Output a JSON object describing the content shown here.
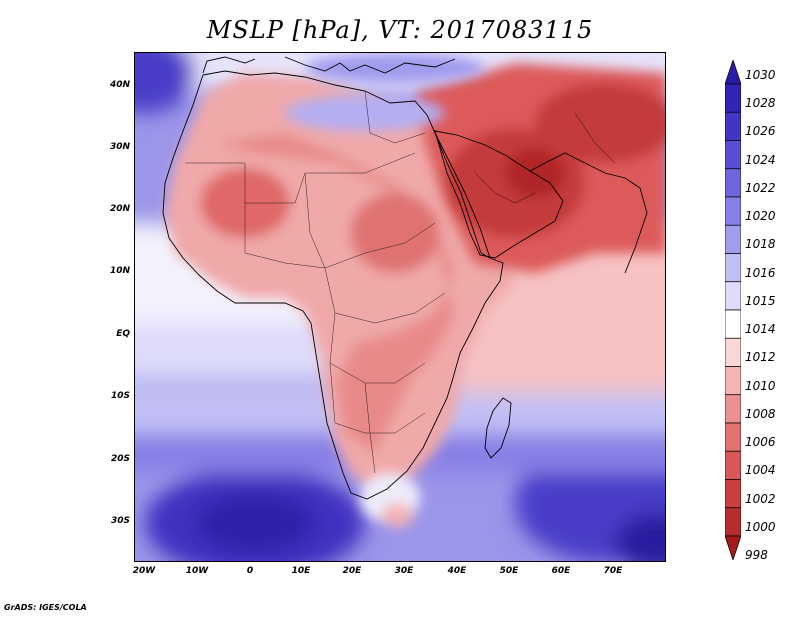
{
  "title": "MSLP [hPa], VT: 2017083115",
  "credit": "GrADS: IGES/COLA",
  "lat_labels": [
    "40N",
    "30N",
    "20N",
    "10N",
    "EQ",
    "10S",
    "20S",
    "30S"
  ],
  "lon_labels": [
    "20W",
    "10W",
    "0",
    "10E",
    "20E",
    "30E",
    "40E",
    "50E",
    "60E",
    "70E"
  ],
  "colorbar": {
    "levels": [
      "1030",
      "1028",
      "1026",
      "1024",
      "1022",
      "1020",
      "1018",
      "1016",
      "1015",
      "1014",
      "1012",
      "1010",
      "1008",
      "1006",
      "1004",
      "1002",
      "1000",
      "998"
    ],
    "colors": [
      "#2b1aa6",
      "#3424b5",
      "#4434c4",
      "#5a4ed2",
      "#6f66dc",
      "#8880e6",
      "#a29cef",
      "#c2bff5",
      "#dedcfa",
      "#ffffff",
      "#fbd6d6",
      "#f5b3b3",
      "#ec9191",
      "#e27272",
      "#d85757",
      "#c94040",
      "#b52d2d",
      "#a21a1a"
    ]
  },
  "colors": {
    "ocean_high": "#3a2cbd",
    "land_low": "#e77a7a",
    "coast": "#000000"
  }
}
